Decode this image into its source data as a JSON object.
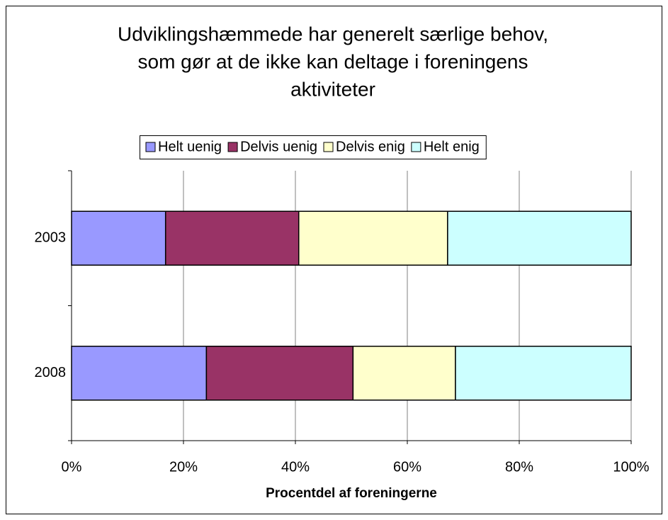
{
  "chart_data": {
    "type": "stacked-bar-horizontal",
    "title": [
      "Udviklingshæmmede har generelt særlige behov,",
      "som gør at de ikke kan deltage i foreningens",
      "aktiviteter"
    ],
    "categories": [
      "2003",
      "2008"
    ],
    "series": [
      {
        "name": "Helt uenig",
        "color": "#9999ff",
        "values": [
          16.8,
          24.1
        ]
      },
      {
        "name": "Delvis uenig",
        "color": "#993366",
        "values": [
          23.8,
          26.2
        ]
      },
      {
        "name": "Delvis enig",
        "color": "#ffffcc",
        "values": [
          26.6,
          18.3
        ]
      },
      {
        "name": "Helt enig",
        "color": "#ccffff",
        "values": [
          32.8,
          31.4
        ]
      }
    ],
    "xlim": [
      0,
      100
    ],
    "xticks": [
      {
        "value": 0,
        "label": "0%"
      },
      {
        "value": 20,
        "label": "20%"
      },
      {
        "value": 40,
        "label": "40%"
      },
      {
        "value": 60,
        "label": "60%"
      },
      {
        "value": 80,
        "label": "80%"
      },
      {
        "value": 100,
        "label": "100%"
      }
    ],
    "xlabel": "Procentdel af foreningerne",
    "grid": true,
    "legend": "top"
  }
}
